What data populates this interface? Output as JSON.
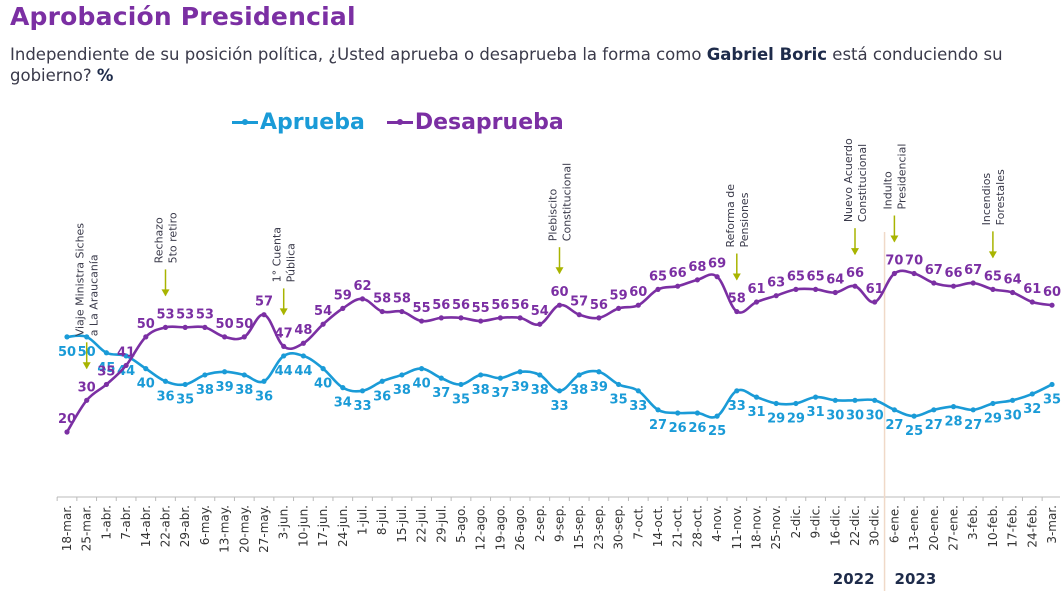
{
  "header": {
    "title": "Aprobación Presidencial",
    "subtitle_pre": "Independiente de su posición política, ¿Usted aprueba o desaprueba la forma como ",
    "subtitle_bold": "Gabriel Boric",
    "subtitle_post": " está conduciendo su gobierno? ",
    "subtitle_unit": "%"
  },
  "chart_data": {
    "type": "line",
    "title": "Aprobación Presidencial",
    "xlabel": "",
    "ylabel": "%",
    "ylim": [
      0,
      75
    ],
    "grid": false,
    "legend_position": "top-center",
    "categories": [
      "18-mar.",
      "25-mar.",
      "1-abr.",
      "7-abr.",
      "14-abr.",
      "22-abr.",
      "29-abr.",
      "6-may.",
      "13-may.",
      "20-may.",
      "27-may.",
      "3-jun.",
      "10-jun.",
      "17-jun.",
      "24-jun.",
      "1-jul.",
      "8-jul.",
      "15-jul.",
      "22-jul.",
      "29-jul.",
      "5-ago.",
      "12-ago.",
      "19-ago.",
      "26-ago.",
      "2-sep.",
      "9-sep.",
      "15-sep.",
      "23-sep.",
      "30-sep.",
      "7-oct.",
      "14-oct.",
      "21-oct.",
      "28-oct.",
      "4-nov.",
      "11-nov.",
      "18-nov.",
      "25-nov.",
      "2-dic.",
      "9-dic.",
      "16-dic.",
      "22-dic.",
      "30-dic.",
      "6-ene.",
      "13-ene.",
      "20-ene.",
      "27-ene.",
      "3-feb.",
      "10-feb.",
      "17-feb.",
      "24-feb.",
      "3-mar."
    ],
    "series": [
      {
        "name": "Aprueba",
        "color": "#1a9bd7",
        "label_position": "below",
        "values": [
          50,
          50,
          45,
          44,
          40,
          36,
          35,
          38,
          39,
          38,
          36,
          44,
          44,
          40,
          34,
          33,
          36,
          38,
          40,
          37,
          35,
          38,
          37,
          39,
          38,
          33,
          38,
          39,
          35,
          33,
          27,
          26,
          26,
          25,
          33,
          31,
          29,
          29,
          31,
          30,
          30,
          30,
          27,
          25,
          27,
          28,
          27,
          29,
          30,
          32,
          35
        ]
      },
      {
        "name": "Desaprueba",
        "color": "#7b2fa3",
        "label_position": "above",
        "values": [
          20,
          30,
          35,
          41,
          50,
          53,
          53,
          53,
          50,
          50,
          57,
          47,
          48,
          54,
          59,
          62,
          58,
          58,
          55,
          56,
          56,
          55,
          56,
          56,
          54,
          60,
          57,
          56,
          59,
          60,
          65,
          66,
          68,
          69,
          58,
          61,
          63,
          65,
          65,
          64,
          66,
          61,
          70,
          70,
          67,
          66,
          67,
          65,
          64,
          61,
          60
        ]
      }
    ],
    "annotations": [
      {
        "category": "25-mar.",
        "lines": [
          "Viaje Ministra Siches",
          "a La Araucanía"
        ]
      },
      {
        "category": "22-abr.",
        "lines": [
          "Rechazo",
          "5to retiro"
        ]
      },
      {
        "category": "3-jun.",
        "lines": [
          "1° Cuenta",
          "Pública"
        ]
      },
      {
        "category": "9-sep.",
        "lines": [
          "Plebiscito",
          "Constitucional"
        ]
      },
      {
        "category": "11-nov.",
        "lines": [
          "Reforma de",
          "Pensiones"
        ]
      },
      {
        "category": "22-dic.",
        "lines": [
          "Nuevo Acuerdo",
          "Constitucional"
        ]
      },
      {
        "category": "6-ene.",
        "lines": [
          "Indulto",
          "Presidencial"
        ]
      },
      {
        "category": "10-feb.",
        "lines": [
          "Incendios",
          "Forestales"
        ]
      }
    ],
    "year_divider_after": "30-dic.",
    "year_labels": [
      "2022",
      "2023"
    ],
    "annotation_arrow_color": "#a8b400"
  }
}
